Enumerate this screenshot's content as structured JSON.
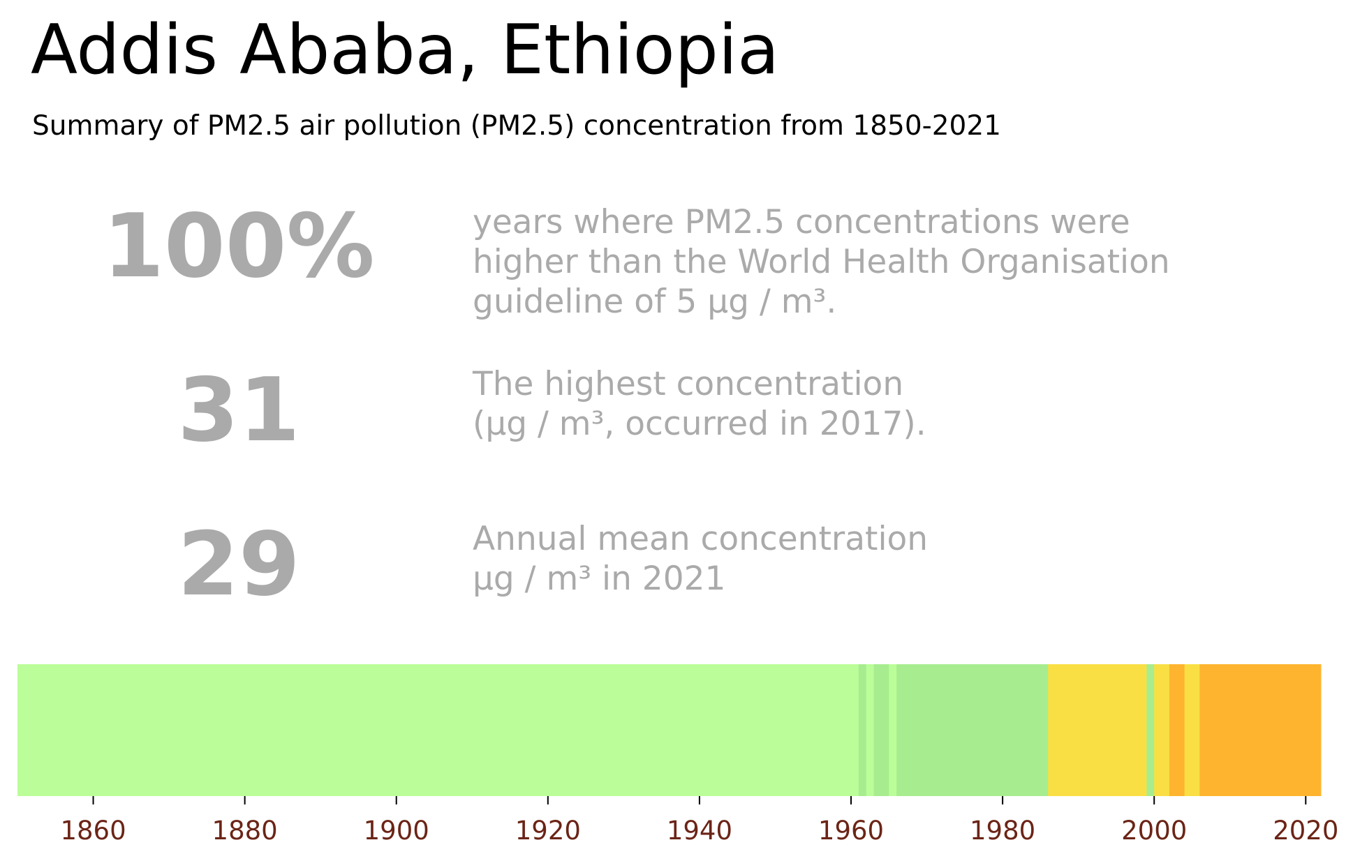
{
  "header": {
    "title": "Addis Ababa, Ethiopia",
    "subtitle": "Summary of PM2.5 air pollution (PM2.5) concentration from 1850-2021"
  },
  "stats": [
    {
      "value": "100%",
      "description": "years where PM2.5 concentrations were\nhigher than the World Health Organisation\nguideline of 5 μg / m³."
    },
    {
      "value": "31",
      "description": "The highest concentration\n(μg / m³, occurred in 2017)."
    },
    {
      "value": "29",
      "description": "Annual mean concentration\nμg / m³ in 2021"
    }
  ],
  "colors": {
    "stat_text": "#aaaaaa",
    "tick_label": "#6b2416"
  },
  "chart_data": {
    "type": "heatmap",
    "xlim": [
      1850,
      2022
    ],
    "x_ticks": [
      "1860",
      "1880",
      "1900",
      "1920",
      "1940",
      "1960",
      "1980",
      "2000",
      "2020"
    ],
    "segments": [
      {
        "start": 1850,
        "end": 1961,
        "color": "#bbfd98"
      },
      {
        "start": 1961,
        "end": 1962,
        "color": "#a7ed8f"
      },
      {
        "start": 1962,
        "end": 1963,
        "color": "#bbfd98"
      },
      {
        "start": 1963,
        "end": 1965,
        "color": "#a7ed8f"
      },
      {
        "start": 1965,
        "end": 1966,
        "color": "#bbfd98"
      },
      {
        "start": 1966,
        "end": 1986,
        "color": "#a7ed8f"
      },
      {
        "start": 1986,
        "end": 1999,
        "color": "#f9df44"
      },
      {
        "start": 1999,
        "end": 2000,
        "color": "#a7ed8f"
      },
      {
        "start": 2000,
        "end": 2002,
        "color": "#f9df44"
      },
      {
        "start": 2002,
        "end": 2004,
        "color": "#feb42e"
      },
      {
        "start": 2004,
        "end": 2006,
        "color": "#f9df44"
      },
      {
        "start": 2006,
        "end": 2022,
        "color": "#feb42e"
      }
    ]
  }
}
